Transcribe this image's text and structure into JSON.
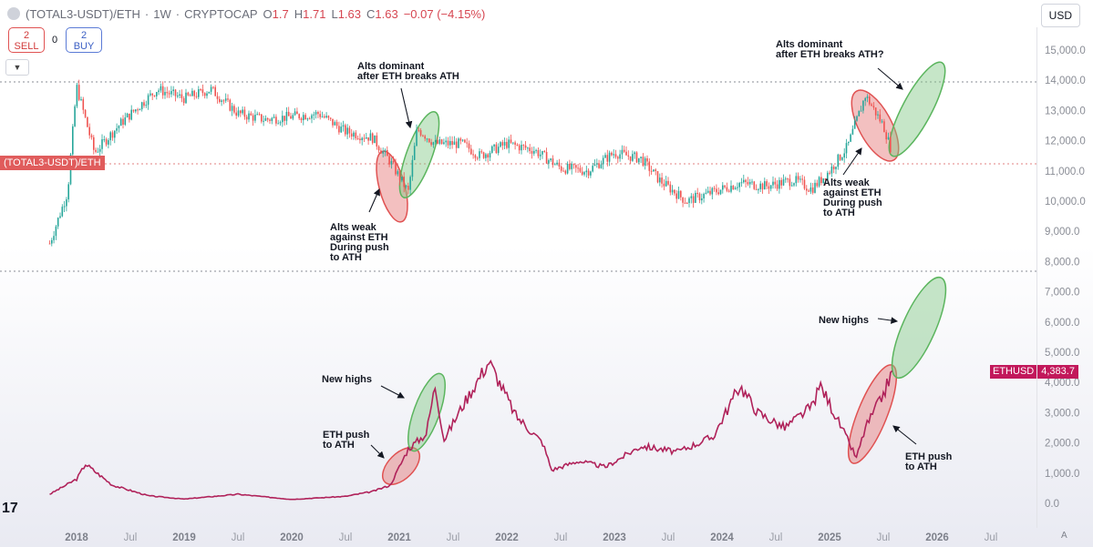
{
  "header": {
    "symbol": "(TOTAL3-USDT)/ETH",
    "separator": "·",
    "interval": "1W",
    "exchange": "CRYPTOCAP",
    "open_label": "O",
    "open": "1.7",
    "high_label": "H",
    "high": "1.71",
    "low_label": "L",
    "low": "1.63",
    "close_label": "C",
    "close": "1.63",
    "change": "−0.07 (−4.15%)"
  },
  "toolbar": {
    "sell_count": "2",
    "sell_label": "SELL",
    "spread": "0",
    "buy_count": "2",
    "buy_label": "BUY",
    "collapse_icon": "chevron-down-icon",
    "currency": "USD"
  },
  "price_tags": {
    "total3_label": "(TOTAL3-USDT)/ETH",
    "eth_symbol": "ETHUSD",
    "eth_value": "4,383.7"
  },
  "y_axis_labels": [
    "15,000.0",
    "14,000.0",
    "13,000.0",
    "12,000.0",
    "11,000.0",
    "10,000.0",
    "9,000.0",
    "8,000.0",
    "7,000.0",
    "6,000.0",
    "5,000.0",
    "4,000.0",
    "3,000.0",
    "2,000.0",
    "1,000.0",
    "0.0"
  ],
  "x_axis_labels": [
    {
      "text": "2018",
      "year": true
    },
    {
      "text": "Jul",
      "year": false
    },
    {
      "text": "2019",
      "year": true
    },
    {
      "text": "Jul",
      "year": false
    },
    {
      "text": "2020",
      "year": true
    },
    {
      "text": "Jul",
      "year": false
    },
    {
      "text": "2021",
      "year": true
    },
    {
      "text": "Jul",
      "year": false
    },
    {
      "text": "2022",
      "year": true
    },
    {
      "text": "Jul",
      "year": false
    },
    {
      "text": "2023",
      "year": true
    },
    {
      "text": "Jul",
      "year": false
    },
    {
      "text": "2024",
      "year": true
    },
    {
      "text": "Jul",
      "year": false
    },
    {
      "text": "2025",
      "year": true
    },
    {
      "text": "Jul",
      "year": false
    },
    {
      "text": "2026",
      "year": true
    },
    {
      "text": "Jul",
      "year": false
    }
  ],
  "annotations": {
    "alts_weak_1": [
      "Alts weak",
      "against ETH",
      "During push",
      "to ATH"
    ],
    "alts_dominant_1": [
      "Alts dominant",
      "after ETH breaks ATH"
    ],
    "alts_dominant_2": [
      "Alts dominant",
      "after ETH breaks ATH?"
    ],
    "alts_weak_2": [
      "Alts weak",
      "against ETH",
      "During push",
      "to ATH"
    ],
    "new_highs_1": "New highs",
    "eth_push_1": [
      "ETH push",
      "to ATH"
    ],
    "new_highs_2": "New highs",
    "eth_push_2": [
      "ETH push",
      "to ATH"
    ]
  },
  "footer": {
    "tv_logo": "17",
    "auto_label": "A"
  },
  "colors": {
    "candle_up": "#26a69a",
    "candle_down": "#ef5350",
    "eth_line": "#b0225a",
    "red_zone": "#e57373",
    "green_zone": "#81c784"
  },
  "chart_data": [
    {
      "type": "candlestick",
      "title": "(TOTAL3-USDT)/ETH",
      "x": [
        "2017-10",
        "2017-12",
        "2018-01",
        "2018-03",
        "2018-06",
        "2018-10",
        "2019-01",
        "2019-04",
        "2019-07",
        "2019-10",
        "2020-01",
        "2020-04",
        "2020-07",
        "2020-10",
        "2020-12",
        "2021-02",
        "2021-03",
        "2021-05",
        "2021-08",
        "2021-10",
        "2022-01",
        "2022-04",
        "2022-07",
        "2022-10",
        "2023-01",
        "2023-04",
        "2023-06",
        "2023-09",
        "2023-12",
        "2024-03",
        "2024-06",
        "2024-09",
        "2024-11",
        "2025-01",
        "2025-03",
        "2025-05",
        "2025-07",
        "2025-08"
      ],
      "y": [
        8.6,
        10.3,
        13.8,
        11.6,
        12.6,
        13.7,
        13.4,
        13.7,
        12.9,
        12.7,
        12.8,
        12.9,
        12.3,
        12.1,
        11.3,
        10.3,
        12.4,
        11.9,
        11.9,
        11.5,
        11.9,
        11.7,
        11.1,
        11.0,
        11.6,
        11.4,
        10.7,
        10.0,
        10.3,
        10.6,
        10.5,
        10.7,
        10.4,
        11.0,
        11.8,
        13.5,
        12.5,
        11.6
      ],
      "ylim": [
        7.2,
        15.6
      ]
    },
    {
      "type": "line",
      "title": "ETHUSD",
      "x": [
        "2017-10",
        "2018-01",
        "2018-02",
        "2018-05",
        "2018-09",
        "2019-01",
        "2019-07",
        "2020-01",
        "2020-07",
        "2020-10",
        "2020-12",
        "2021-01",
        "2021-02",
        "2021-04",
        "2021-05",
        "2021-06",
        "2021-08",
        "2021-11",
        "2022-02",
        "2022-05",
        "2022-06",
        "2022-09",
        "2022-12",
        "2023-04",
        "2023-08",
        "2023-12",
        "2024-03",
        "2024-05",
        "2024-08",
        "2024-11",
        "2024-12",
        "2025-02",
        "2025-04",
        "2025-05",
        "2025-07",
        "2025-08"
      ],
      "y": [
        300,
        800,
        1300,
        600,
        250,
        140,
        300,
        130,
        230,
        390,
        600,
        1200,
        1800,
        2300,
        3900,
        2100,
        3200,
        4700,
        2900,
        2000,
        1100,
        1400,
        1200,
        1900,
        1700,
        2200,
        3900,
        3000,
        2500,
        3200,
        3900,
        2700,
        1500,
        2500,
        3600,
        4383.7
      ],
      "ylim": [
        -100,
        7600
      ]
    }
  ]
}
